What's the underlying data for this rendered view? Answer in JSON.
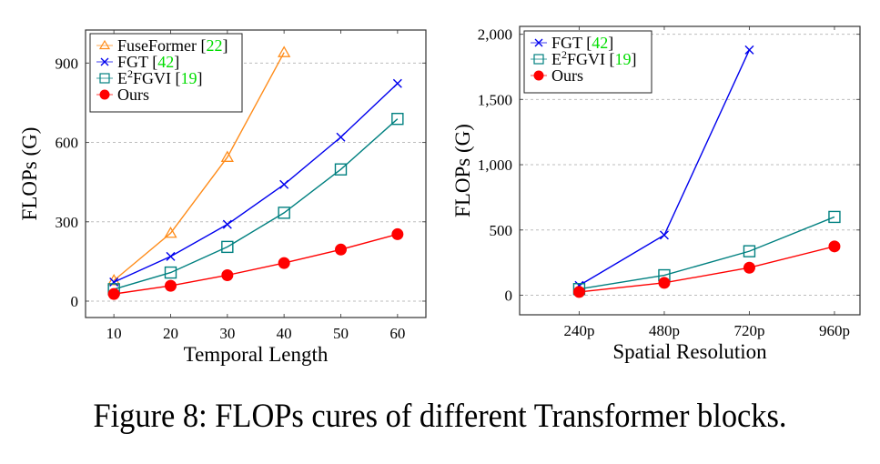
{
  "caption": "Figure 8: FLOPs cures of different Transformer blocks.",
  "colors": {
    "fuseformer": "#ff8c1a",
    "fgt": "#0000ee",
    "e2fgvi": "#008080",
    "ours": "#ff0000",
    "citation": "#00dd00",
    "grid": "#bdbdbd"
  },
  "chart_data": [
    {
      "type": "line",
      "title": "",
      "xlabel": "Temporal Length",
      "ylabel": "FLOPs (G)",
      "x": [
        10,
        20,
        30,
        40,
        50,
        60
      ],
      "xlim": [
        5,
        65
      ],
      "ylim": [
        -62,
        1025
      ],
      "xticks": [
        10,
        20,
        30,
        40,
        50,
        60
      ],
      "yticks": [
        0,
        300,
        600,
        900
      ],
      "ytick_labels": [
        "0",
        "300",
        "600",
        "900"
      ],
      "grid": "y-dashed",
      "legend_position": "top-left",
      "series": [
        {
          "name": "FuseFormer",
          "ref": "22",
          "marker": "triangle",
          "color_key": "fuseformer",
          "x": [
            10,
            20,
            30,
            40
          ],
          "values": [
            78,
            257,
            544,
            940
          ]
        },
        {
          "name": "FGT",
          "ref": "42",
          "marker": "x",
          "color_key": "fgt",
          "x": [
            10,
            20,
            30,
            40,
            50,
            60
          ],
          "values": [
            72,
            169,
            290,
            441,
            620,
            823
          ]
        },
        {
          "name": "E2FGVI",
          "ref": "19",
          "marker": "square",
          "color_key": "e2fgvi",
          "x": [
            10,
            20,
            30,
            40,
            50,
            60
          ],
          "values": [
            45,
            108,
            205,
            334,
            498,
            689
          ]
        },
        {
          "name": "Ours",
          "ref": "",
          "marker": "circle",
          "color_key": "ours",
          "x": [
            10,
            20,
            30,
            40,
            50,
            60
          ],
          "values": [
            27,
            58,
            98,
            144,
            195,
            253
          ]
        }
      ]
    },
    {
      "type": "line",
      "title": "",
      "xlabel": "Spatial Resolution",
      "ylabel": "FLOPs (G)",
      "categories": [
        "240p",
        "480p",
        "720p",
        "960p"
      ],
      "xlim": [
        -0.7,
        3.3
      ],
      "ylim": [
        -150,
        2060
      ],
      "yticks": [
        0,
        500,
        1000,
        1500,
        2000
      ],
      "ytick_labels": [
        "0",
        "500",
        "1,000",
        "1,500",
        "2,000"
      ],
      "grid": "y-dashed",
      "legend_position": "top-left",
      "series": [
        {
          "name": "FGT",
          "ref": "42",
          "marker": "x",
          "color_key": "fgt",
          "x": [
            0,
            1,
            2
          ],
          "values": [
            75,
            461,
            1880
          ]
        },
        {
          "name": "E2FGVI",
          "ref": "19",
          "marker": "square",
          "color_key": "e2fgvi",
          "x": [
            0,
            1,
            2,
            3
          ],
          "values": [
            47,
            153,
            337,
            600
          ]
        },
        {
          "name": "Ours",
          "ref": "",
          "marker": "circle",
          "color_key": "ours",
          "x": [
            0,
            1,
            2,
            3
          ],
          "values": [
            25,
            95,
            211,
            374
          ]
        }
      ]
    }
  ]
}
